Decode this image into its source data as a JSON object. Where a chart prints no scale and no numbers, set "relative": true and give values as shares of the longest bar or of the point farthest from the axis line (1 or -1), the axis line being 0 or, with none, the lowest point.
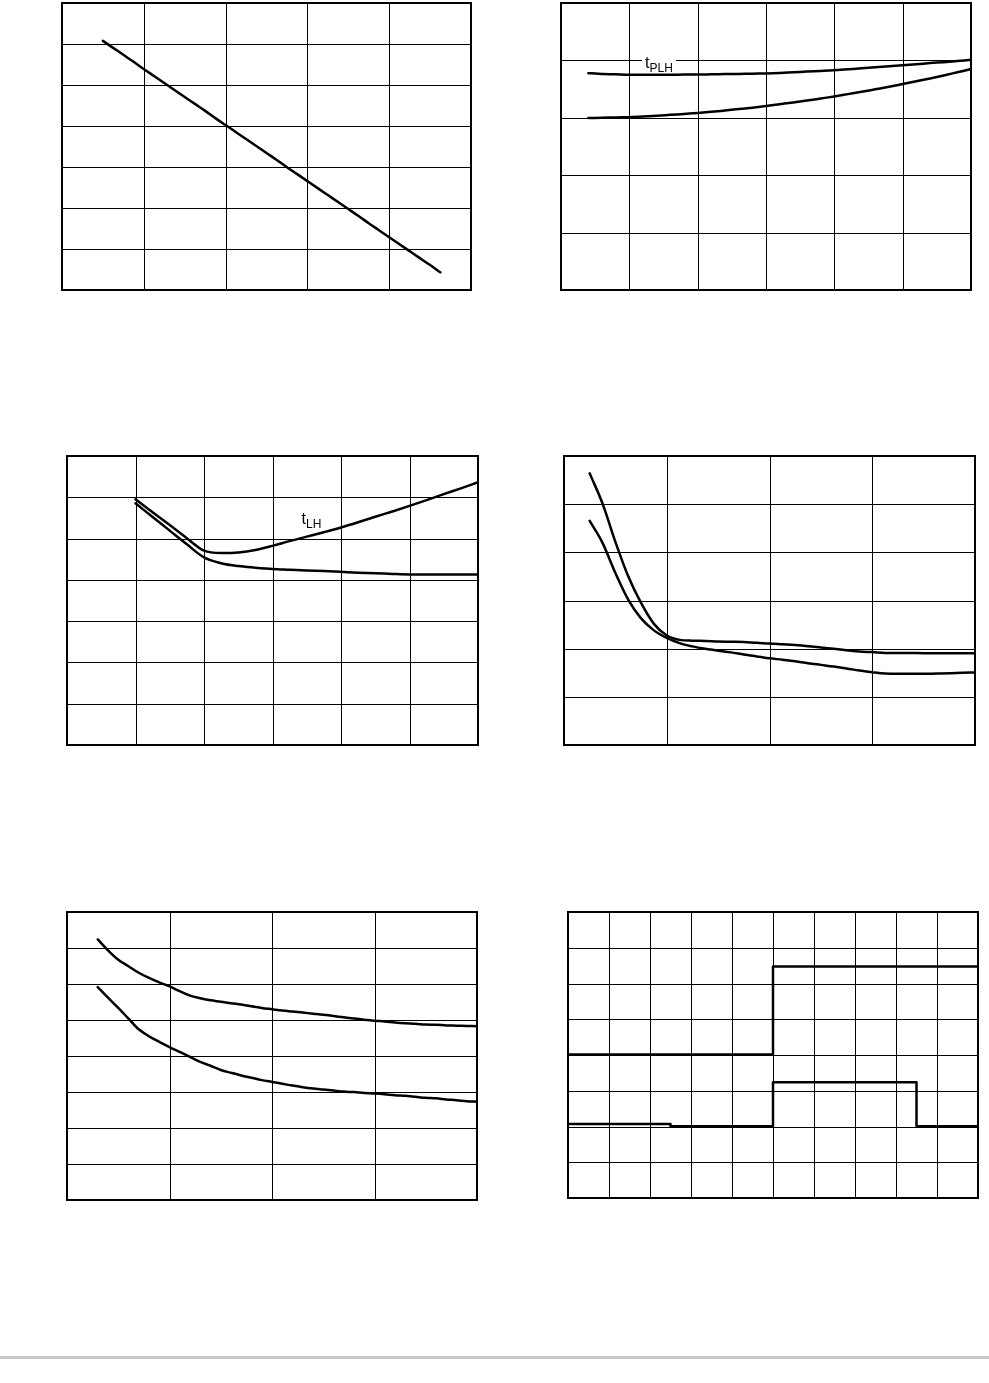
{
  "chart_data": [
    {
      "type": "line",
      "relative": true,
      "grid": true,
      "categories": [
        null,
        null,
        null,
        null,
        null,
        null,
        null,
        null,
        null,
        null,
        null,
        null,
        null,
        null,
        null,
        null,
        null,
        null,
        null,
        null,
        null,
        null,
        null,
        null,
        null,
        null,
        null,
        null,
        null,
        null,
        null,
        null,
        null,
        null,
        null,
        null,
        null,
        null,
        null,
        null,
        null
      ],
      "series": [
        {
          "color": "#000000",
          "values": [
            null,
            null,
            null,
            null,
            1.0,
            0.972,
            0.944,
            0.916,
            0.887,
            0.859,
            0.831,
            0.803,
            0.775,
            0.747,
            0.719,
            0.69,
            0.662,
            0.634,
            0.606,
            0.578,
            0.55,
            0.522,
            0.493,
            0.465,
            0.437,
            0.409,
            0.381,
            0.353,
            0.325,
            0.297,
            0.268,
            0.24,
            0.212,
            0.184,
            0.156,
            0.128,
            0.1,
            0.071,
            null,
            null,
            null
          ]
        }
      ]
    },
    {
      "type": "line",
      "relative": true,
      "grid": true,
      "categories": [
        null,
        null,
        null,
        null,
        null,
        null,
        null,
        null,
        null,
        null,
        null,
        null,
        null,
        null,
        null,
        null,
        null,
        null,
        null,
        null,
        null,
        null,
        null,
        null,
        null,
        null,
        null,
        null,
        null,
        null,
        null
      ],
      "series": [
        {
          "name": "t$_{PLH}$",
          "color": "#000000",
          "values": [
            null,
            null,
            0.942,
            0.939,
            0.937,
            0.935,
            0.935,
            0.935,
            0.935,
            0.936,
            0.936,
            0.937,
            0.938,
            0.939,
            0.94,
            0.941,
            0.943,
            0.946,
            0.949,
            0.952,
            0.955,
            0.959,
            0.963,
            0.968,
            0.972,
            0.977,
            0.981,
            0.986,
            0.99,
            0.995,
            1.0
          ]
        },
        {
          "color": "#000000",
          "values": [
            null,
            null,
            0.747,
            0.748,
            0.75,
            0.751,
            0.754,
            0.757,
            0.761,
            0.765,
            0.769,
            0.774,
            0.78,
            0.786,
            0.792,
            0.799,
            0.807,
            0.815,
            0.823,
            0.832,
            0.841,
            0.851,
            0.861,
            0.872,
            0.883,
            0.895,
            0.907,
            0.919,
            0.932,
            0.946,
            0.96
          ]
        }
      ]
    },
    {
      "type": "line",
      "relative": true,
      "grid": true,
      "categories": [
        null,
        null,
        null,
        null,
        null,
        null,
        null,
        null,
        null,
        null,
        null,
        null,
        null,
        null,
        null,
        null,
        null,
        null,
        null,
        null,
        null,
        null,
        null,
        null,
        null
      ],
      "series": [
        {
          "name": "t$_{LH}$",
          "color": "#000000",
          "values": [
            null,
            null,
            null,
            null,
            0.935,
            0.886,
            0.837,
            0.787,
            0.74,
            0.731,
            0.733,
            0.742,
            0.758,
            0.776,
            0.793,
            0.81,
            0.828,
            0.848,
            0.869,
            0.889,
            0.91,
            0.932,
            0.955,
            0.977,
            1.0
          ]
        },
        {
          "color": "#000000",
          "values": [
            null,
            null,
            null,
            null,
            0.92,
            0.868,
            0.816,
            0.764,
            0.714,
            0.692,
            0.681,
            0.675,
            0.67,
            0.667,
            0.664,
            0.662,
            0.659,
            0.656,
            0.654,
            0.651,
            0.649,
            0.649,
            0.649,
            0.649,
            0.649
          ]
        }
      ]
    },
    {
      "type": "line",
      "relative": true,
      "grid": true,
      "categories": [
        null,
        null,
        null,
        null,
        null,
        null,
        null,
        null,
        null,
        null,
        null,
        null,
        null,
        null,
        null,
        null,
        null,
        null,
        null,
        null,
        null,
        null,
        null,
        null,
        null,
        null,
        null,
        null,
        null,
        null,
        null,
        null,
        null
      ],
      "series": [
        {
          "color": "#000000",
          "values": [
            null,
            null,
            1.0,
            0.889,
            0.748,
            0.621,
            0.523,
            0.446,
            0.403,
            0.387,
            0.384,
            0.383,
            0.381,
            0.38,
            0.379,
            0.376,
            0.374,
            0.371,
            0.368,
            0.364,
            0.359,
            0.354,
            0.349,
            0.344,
            0.342,
            0.339,
            0.339,
            0.339,
            0.338,
            0.338,
            0.338,
            0.338,
            0.338
          ]
        },
        {
          "color": "#000000",
          "values": [
            null,
            null,
            0.825,
            0.744,
            0.633,
            0.535,
            0.466,
            0.422,
            0.394,
            0.375,
            0.363,
            0.354,
            0.347,
            0.341,
            0.333,
            0.326,
            0.319,
            0.314,
            0.308,
            0.301,
            0.295,
            0.289,
            0.282,
            0.274,
            0.268,
            0.263,
            0.262,
            0.262,
            0.262,
            0.263,
            0.264,
            0.266,
            0.267
          ]
        }
      ]
    },
    {
      "type": "line",
      "relative": true,
      "grid": true,
      "categories": [
        null,
        null,
        null,
        null,
        null,
        null,
        null,
        null,
        null,
        null,
        null,
        null,
        null,
        null,
        null,
        null,
        null,
        null,
        null,
        null,
        null,
        null,
        null,
        null,
        null,
        null,
        null,
        null,
        null,
        null,
        null,
        null,
        null,
        null,
        null,
        null,
        null,
        null,
        null,
        null,
        null
      ],
      "series": [
        {
          "color": "#000000",
          "values": [
            null,
            null,
            null,
            1.0,
            0.958,
            0.922,
            0.897,
            0.872,
            0.852,
            0.835,
            0.82,
            0.801,
            0.784,
            0.774,
            0.766,
            0.761,
            0.755,
            0.75,
            0.743,
            0.737,
            0.732,
            0.727,
            0.723,
            0.719,
            0.715,
            0.711,
            0.706,
            0.701,
            0.696,
            0.692,
            0.688,
            0.685,
            0.681,
            0.678,
            0.676,
            0.673,
            0.672,
            0.67,
            0.669,
            0.668,
            0.667
          ]
        },
        {
          "color": "#000000",
          "values": [
            null,
            null,
            null,
            0.817,
            0.776,
            0.737,
            0.696,
            0.655,
            0.628,
            0.607,
            0.587,
            0.568,
            0.549,
            0.53,
            0.515,
            0.499,
            0.488,
            0.478,
            0.469,
            0.46,
            0.453,
            0.446,
            0.439,
            0.433,
            0.428,
            0.424,
            0.42,
            0.416,
            0.414,
            0.411,
            0.409,
            0.406,
            0.402,
            0.4,
            0.396,
            0.392,
            0.39,
            0.386,
            0.383,
            0.379,
            0.377
          ]
        }
      ]
    },
    {
      "type": "step",
      "relative": true,
      "grid": true,
      "categories": [
        null,
        null,
        null,
        null,
        null,
        null,
        null,
        null,
        null,
        null,
        null,
        null,
        null,
        null,
        null,
        null,
        null,
        null,
        null,
        null,
        null
      ],
      "series": [
        {
          "color": "#000000",
          "values": [
            0.62,
            0.62,
            0.62,
            0.62,
            0.62,
            0.62,
            0.62,
            0.62,
            0.62,
            0.62,
            1.0,
            1.0,
            1.0,
            1.0,
            1.0,
            1.0,
            1.0,
            1.0,
            1.0,
            1.0,
            1.0
          ]
        },
        {
          "color": "#000000",
          "values": [
            0.32,
            0.32,
            0.32,
            0.32,
            0.32,
            0.31,
            0.31,
            0.31,
            0.31,
            0.31,
            0.5,
            0.5,
            0.5,
            0.5,
            0.5,
            0.5,
            0.5,
            0.31,
            0.31,
            0.31,
            0.31
          ]
        }
      ]
    }
  ]
}
